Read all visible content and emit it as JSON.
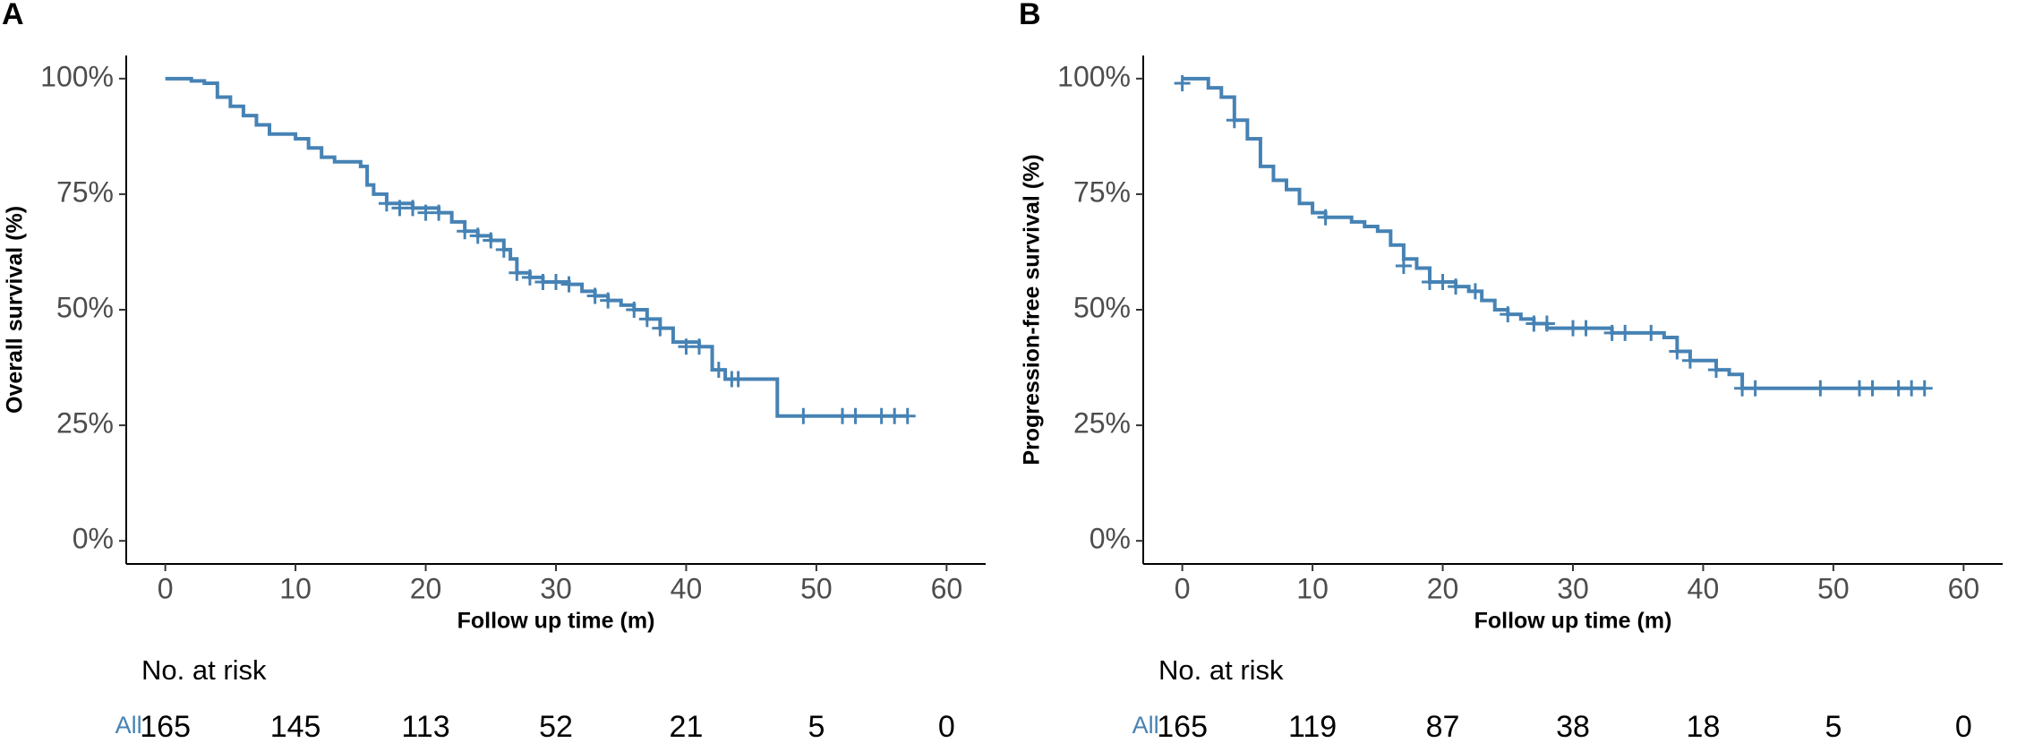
{
  "chart_data": [
    {
      "type": "step",
      "panel": "A",
      "ylabel": "Overall survival (%)",
      "xlabel": "Follow up time (m)",
      "color": "#4682b4",
      "x": [
        0,
        2,
        3,
        4,
        5,
        6,
        7,
        8,
        10,
        11,
        12,
        13,
        15,
        15.5,
        16,
        17,
        19,
        21,
        22,
        23,
        24,
        25,
        26,
        26.5,
        27,
        28,
        29,
        31,
        32,
        33,
        34,
        35,
        36,
        37,
        38,
        39,
        41,
        42,
        43,
        47,
        57
      ],
      "values": [
        100,
        99.5,
        99,
        96,
        94,
        92,
        90,
        88,
        87,
        85,
        83,
        82,
        81,
        77,
        75,
        73,
        72,
        71,
        69,
        67,
        66,
        65,
        63,
        61,
        58,
        57,
        56,
        55.5,
        54,
        53,
        52,
        51,
        50,
        48,
        46,
        43,
        42,
        37,
        35,
        27,
        27
      ],
      "censored": {
        "x": [
          17,
          18,
          19,
          20,
          21,
          23,
          24,
          25,
          26,
          27,
          28,
          29,
          30,
          31,
          33,
          34,
          36,
          37,
          38,
          40,
          41,
          42.5,
          43.5,
          44,
          49,
          52,
          53,
          55,
          56,
          57
        ],
        "y": [
          73,
          72,
          72,
          71,
          71,
          67,
          66,
          65,
          63,
          58,
          57,
          56,
          56,
          55.5,
          53,
          52,
          50,
          48,
          46,
          42,
          42,
          37,
          35,
          35,
          27,
          27,
          27,
          27,
          27,
          27
        ]
      },
      "xlim": [
        -3,
        63
      ],
      "ylim": [
        -5,
        105
      ],
      "xticks": [
        0,
        10,
        20,
        30,
        40,
        50,
        60
      ],
      "yticks": [
        {
          "value": 0,
          "label": "0%"
        },
        {
          "value": 25,
          "label": "25%"
        },
        {
          "value": 50,
          "label": "50%"
        },
        {
          "value": 75,
          "label": "75%"
        },
        {
          "value": 100,
          "label": "100%"
        }
      ],
      "risk_table": {
        "title": "No. at risk",
        "strata": "All",
        "counts": [
          165,
          145,
          113,
          52,
          21,
          5,
          0
        ]
      }
    },
    {
      "type": "step",
      "panel": "B",
      "ylabel": "Progression-free survival (%)",
      "xlabel": "Follow up time (m)",
      "color": "#4682b4",
      "x": [
        0,
        2,
        3,
        4,
        5,
        6,
        7,
        8,
        9,
        10,
        11,
        13,
        14,
        15,
        16,
        17,
        18,
        19,
        21,
        22,
        23,
        24,
        25,
        26,
        27,
        28,
        33,
        37,
        38,
        39,
        41,
        42,
        43,
        57
      ],
      "values": [
        100,
        98,
        96,
        91,
        87,
        81,
        78,
        76,
        73,
        71,
        70,
        69,
        68,
        67,
        64,
        61,
        59,
        56,
        55,
        54,
        52,
        50,
        49,
        48,
        47,
        46,
        45,
        44,
        41,
        39,
        37,
        36,
        33,
        33
      ],
      "censored": {
        "x": [
          0,
          4,
          11,
          17,
          19,
          20,
          21,
          22.5,
          25,
          27,
          28,
          30,
          31,
          33,
          34,
          36,
          38,
          39,
          41,
          43,
          44,
          49,
          52,
          53,
          55,
          56,
          57
        ],
        "y": [
          99,
          91,
          70,
          59.5,
          56,
          56,
          55,
          54,
          49,
          47,
          47,
          46,
          46,
          45,
          45,
          45,
          41,
          39,
          37,
          33,
          33,
          33,
          33,
          33,
          33,
          33,
          33
        ]
      },
      "xlim": [
        -3,
        63
      ],
      "ylim": [
        -5,
        105
      ],
      "xticks": [
        0,
        10,
        20,
        30,
        40,
        50,
        60
      ],
      "yticks": [
        {
          "value": 0,
          "label": "0%"
        },
        {
          "value": 25,
          "label": "25%"
        },
        {
          "value": 50,
          "label": "50%"
        },
        {
          "value": 75,
          "label": "75%"
        },
        {
          "value": 100,
          "label": "100%"
        }
      ],
      "risk_table": {
        "title": "No. at risk",
        "strata": "All",
        "counts": [
          165,
          119,
          87,
          38,
          18,
          5,
          0
        ]
      }
    }
  ]
}
